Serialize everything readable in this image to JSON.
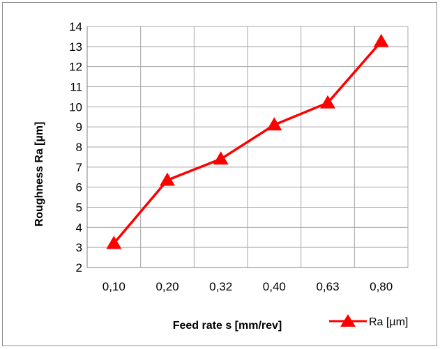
{
  "chart_data": {
    "type": "line",
    "title": "",
    "xlabel": "Feed rate s [mm/rev]",
    "ylabel": "Roughness  Ra [µm]",
    "categories": [
      "0,10",
      "0,20",
      "0,32",
      "0,40",
      "0,63",
      "0,80"
    ],
    "series": [
      {
        "name": "Ra [µm]",
        "values": [
          3.2,
          6.35,
          7.4,
          9.1,
          10.2,
          13.25
        ],
        "color": "#ff0000",
        "marker": "triangle"
      }
    ],
    "ylim": [
      2,
      14
    ],
    "yticks": [
      "2",
      "3",
      "4",
      "5",
      "6",
      "7",
      "8",
      "9",
      "10",
      "11",
      "12",
      "13",
      "14"
    ],
    "grid": true,
    "legend": "bottom-right"
  }
}
